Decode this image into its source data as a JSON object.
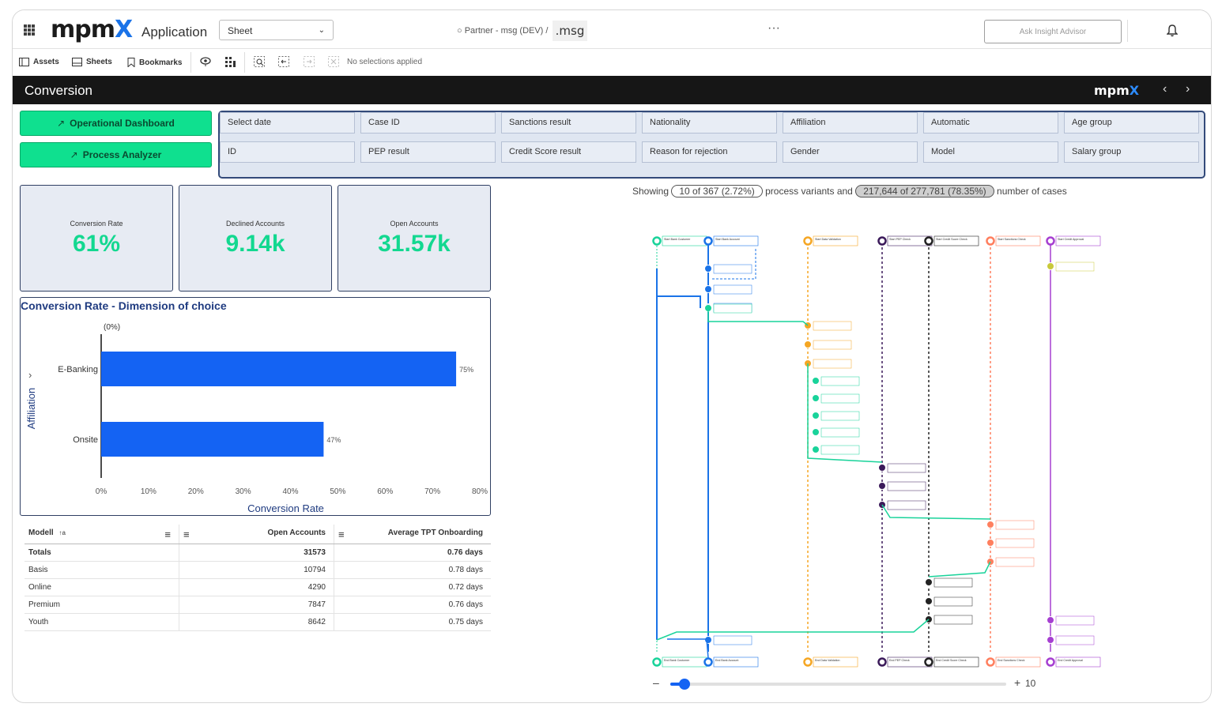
{
  "topbar": {
    "logo_main": "mpm",
    "logo_x": "X",
    "app_name": "Application",
    "sheet_select": "Sheet",
    "partner": "Partner - msg (DEV)",
    "partner_sep": "/",
    "msg_logo": ".msg",
    "more": "···",
    "ask_placeholder": "Ask Insight Advisor"
  },
  "toolbar": {
    "assets": "Assets",
    "sheets": "Sheets",
    "bookmarks": "Bookmarks",
    "no_selections": "No selections applied"
  },
  "sheet": {
    "title": "Conversion",
    "logo_main": "mpm",
    "logo_x": "X",
    "prev": "‹",
    "next": "›"
  },
  "buttons": {
    "operational": "Operational Dashboard",
    "process": "Process Analyzer",
    "arrow": "↗"
  },
  "filters": [
    "Select date",
    "Case ID",
    "Sanctions result",
    "Nationality",
    "Affiliation",
    "Automatic",
    "Age group",
    "ID",
    "PEP result",
    "Credit Score result",
    "Reason for rejection",
    "Gender",
    "Model",
    "Salary group"
  ],
  "kpis": [
    {
      "label": "Conversion Rate",
      "value": "61%"
    },
    {
      "label": "Declined Accounts",
      "value": "9.14k"
    },
    {
      "label": "Open Accounts",
      "value": "31.57k"
    }
  ],
  "chart_data": {
    "type": "bar",
    "orientation": "horizontal",
    "title": "Conversion Rate - Dimension of choice",
    "null_label": "(0%)",
    "categories": [
      "E-Banking",
      "Onsite"
    ],
    "values": [
      75,
      47
    ],
    "value_labels": [
      "75%",
      "47%"
    ],
    "xlabel": "Conversion Rate",
    "ylabel": "Affiliation",
    "xlim": [
      0,
      80
    ],
    "xticks": [
      "0%",
      "10%",
      "20%",
      "30%",
      "40%",
      "50%",
      "60%",
      "70%",
      "80%"
    ],
    "bar_color": "#1463f3"
  },
  "table": {
    "headers": [
      "Modell",
      "Open Accounts",
      "Average TPT Onboarding"
    ],
    "sort_glyph": "↑a",
    "menu_glyph": "≡",
    "totals": [
      "Totals",
      "31573",
      "0.76 days"
    ],
    "rows": [
      [
        "Basis",
        "10794",
        "0.78 days"
      ],
      [
        "Online",
        "4290",
        "0.72 days"
      ],
      [
        "Premium",
        "7847",
        "0.76 days"
      ],
      [
        "Youth",
        "8642",
        "0.75 days"
      ]
    ]
  },
  "process_map": {
    "showing_prefix": "Showing",
    "variants_pill": "10 of 367 (2.72%)",
    "variants_text": "process variants and",
    "cases_pill": "217,644 of 277,781 (78.35%)",
    "cases_text": "number of cases",
    "slider_minus": "–",
    "slider_plus": "+",
    "slider_value": "10",
    "slider_fraction": 0.03,
    "lanes": [
      {
        "color": "#19d39a",
        "start": "Start Bank Customer",
        "end": "End Bank Customer"
      },
      {
        "color": "#1a73e8",
        "start": "Start Bank Account",
        "end": "End Bank Account"
      },
      {
        "color": "#f5a623",
        "start": "Start Data Validation",
        "end": "End Data Validation"
      },
      {
        "color": "#3b1a5a",
        "start": "Start PEP Check",
        "end": "End PEP Check"
      },
      {
        "color": "#222222",
        "start": "Start Credit Score Check",
        "end": "End Credit Score Check"
      },
      {
        "color": "#ff7f5e",
        "start": "Start Sanctions Check",
        "end": "End Sanctions Check"
      },
      {
        "color": "#a63fd1",
        "start": "Start Credit Approval",
        "end": "End Credit Approval"
      }
    ]
  }
}
